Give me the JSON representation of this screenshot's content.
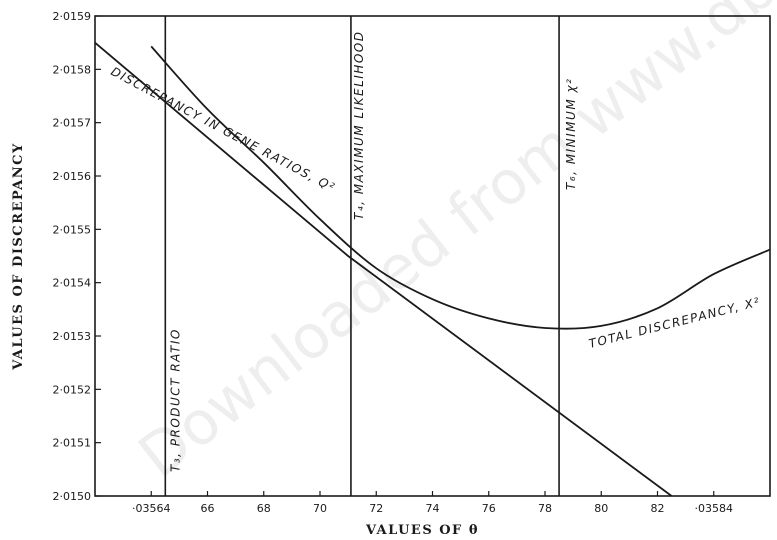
{
  "chart_data": {
    "type": "line",
    "xlabel": "VALUES OF θ",
    "ylabel": "VALUES OF DISCREPANCY",
    "xlim": [
      0.03562,
      0.03586
    ],
    "ylim": [
      2.015,
      2.0159
    ],
    "x_ticks": [
      {
        "value": 0.03564,
        "label": "·03564"
      },
      {
        "value": 0.03566,
        "label": "66"
      },
      {
        "value": 0.03568,
        "label": "68"
      },
      {
        "value": 0.0357,
        "label": "70"
      },
      {
        "value": 0.03572,
        "label": "72"
      },
      {
        "value": 0.03574,
        "label": "74"
      },
      {
        "value": 0.03576,
        "label": "76"
      },
      {
        "value": 0.03578,
        "label": "78"
      },
      {
        "value": 0.0358,
        "label": "80"
      },
      {
        "value": 0.03582,
        "label": "82"
      },
      {
        "value": 0.03584,
        "label": "·03584"
      }
    ],
    "y_ticks": [
      {
        "value": 2.015,
        "label": "2·0150"
      },
      {
        "value": 2.0151,
        "label": "2·0151"
      },
      {
        "value": 2.0152,
        "label": "2·0152"
      },
      {
        "value": 2.0153,
        "label": "2·0153"
      },
      {
        "value": 2.0154,
        "label": "2·0154"
      },
      {
        "value": 2.0155,
        "label": "2·0155"
      },
      {
        "value": 2.0156,
        "label": "2·0156"
      },
      {
        "value": 2.0157,
        "label": "2·0157"
      },
      {
        "value": 2.0158,
        "label": "2·0158"
      },
      {
        "value": 2.0159,
        "label": "2·0159"
      }
    ],
    "series": [
      {
        "name": "Q²",
        "label": "DISCREPANCY IN GENE RATIOS, Q²",
        "points": [
          [
            0.03562,
            2.01585
          ],
          [
            0.03571,
            2.01545
          ],
          [
            0.035825,
            2.015
          ]
        ]
      },
      {
        "name": "X²",
        "label": "TOTAL DISCREPANCY, X²",
        "points": [
          [
            0.03564,
            2.015843
          ],
          [
            0.03566,
            2.015725
          ],
          [
            0.03568,
            2.015625
          ],
          [
            0.0357,
            2.015519
          ],
          [
            0.03572,
            2.015427
          ],
          [
            0.03574,
            2.015369
          ],
          [
            0.03576,
            2.015333
          ],
          [
            0.03578,
            2.015315
          ],
          [
            0.0358,
            2.015319
          ],
          [
            0.03582,
            2.015352
          ],
          [
            0.03584,
            2.015416
          ],
          [
            0.03586,
            2.015462
          ]
        ]
      }
    ],
    "vlines": [
      {
        "x": 0.035645,
        "label": "T₃, PRODUCT RATIO"
      },
      {
        "x": 0.035711,
        "label": "T₄, MAXIMUM LIKELIHOOD"
      },
      {
        "x": 0.035785,
        "label": "T₆, MINIMUM χ²"
      }
    ],
    "annotations": [
      {
        "text": "DISCREPANCY IN GENE RATIOS, Q²"
      },
      {
        "text": "TOTAL DISCREPANCY, X²"
      }
    ],
    "watermark": "Downloaded from www.dbraulibrary.org.in",
    "grid": false
  }
}
